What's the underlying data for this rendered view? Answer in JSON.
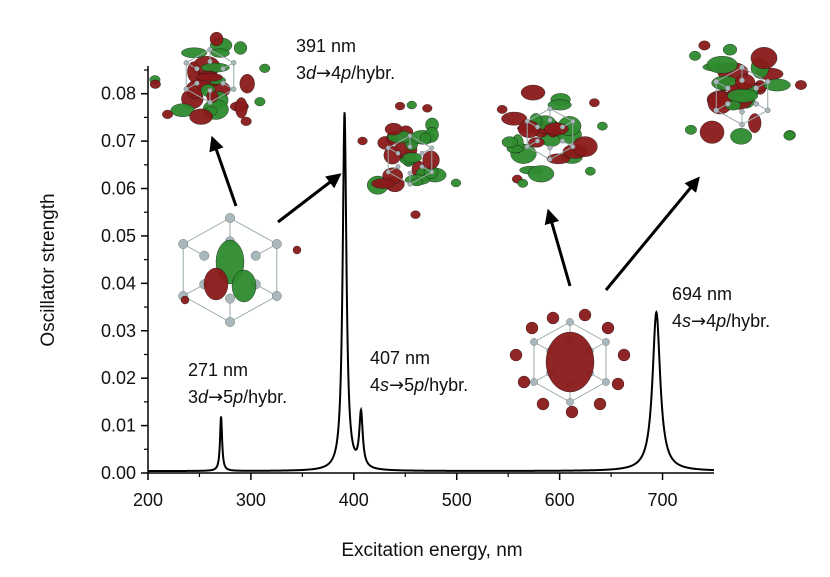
{
  "chart_data": {
    "type": "line",
    "xlabel": "Excitation energy, nm",
    "ylabel": "Oscillator strength",
    "xlim": [
      200,
      750
    ],
    "ylim": [
      0,
      0.085
    ],
    "x_ticks": [
      200,
      300,
      400,
      500,
      600,
      700
    ],
    "y_ticks": [
      0.0,
      0.01,
      0.02,
      0.03,
      0.04,
      0.05,
      0.06,
      0.07,
      0.08
    ],
    "x_tick_labels": [
      "200",
      "300",
      "400",
      "500",
      "600",
      "700"
    ],
    "y_tick_labels": [
      "0.00",
      "0.01",
      "0.02",
      "0.03",
      "0.04",
      "0.05",
      "0.06",
      "0.07",
      "0.08"
    ],
    "grid": false,
    "series_color": "#000000",
    "peaks": [
      {
        "x": 271,
        "y": 0.0115,
        "width": 1.2
      },
      {
        "x": 391,
        "y": 0.0755,
        "width": 2.2
      },
      {
        "x": 407,
        "y": 0.0115,
        "width": 2.0
      },
      {
        "x": 694,
        "y": 0.0335,
        "width": 4.5
      }
    ],
    "annotations": [
      {
        "wavelength": "271 nm",
        "pre": "3",
        "i1": "d",
        "mid": "5",
        "i2": "p",
        "post": "/hybr."
      },
      {
        "wavelength": "391 nm",
        "pre": "3",
        "i1": "d",
        "mid": "4",
        "i2": "p",
        "post": "/hybr."
      },
      {
        "wavelength": "407 nm",
        "pre": "4",
        "i1": "s",
        "mid": "5",
        "i2": "p",
        "post": "/hybr."
      },
      {
        "wavelength": "694 nm",
        "pre": "4",
        "i1": "s",
        "mid": "4",
        "i2": "p",
        "post": "/hybr."
      }
    ],
    "orbital_colors": {
      "positive": "#8b1a1a",
      "negative": "#2e8b2e",
      "atom": "#a8b8bc"
    }
  }
}
